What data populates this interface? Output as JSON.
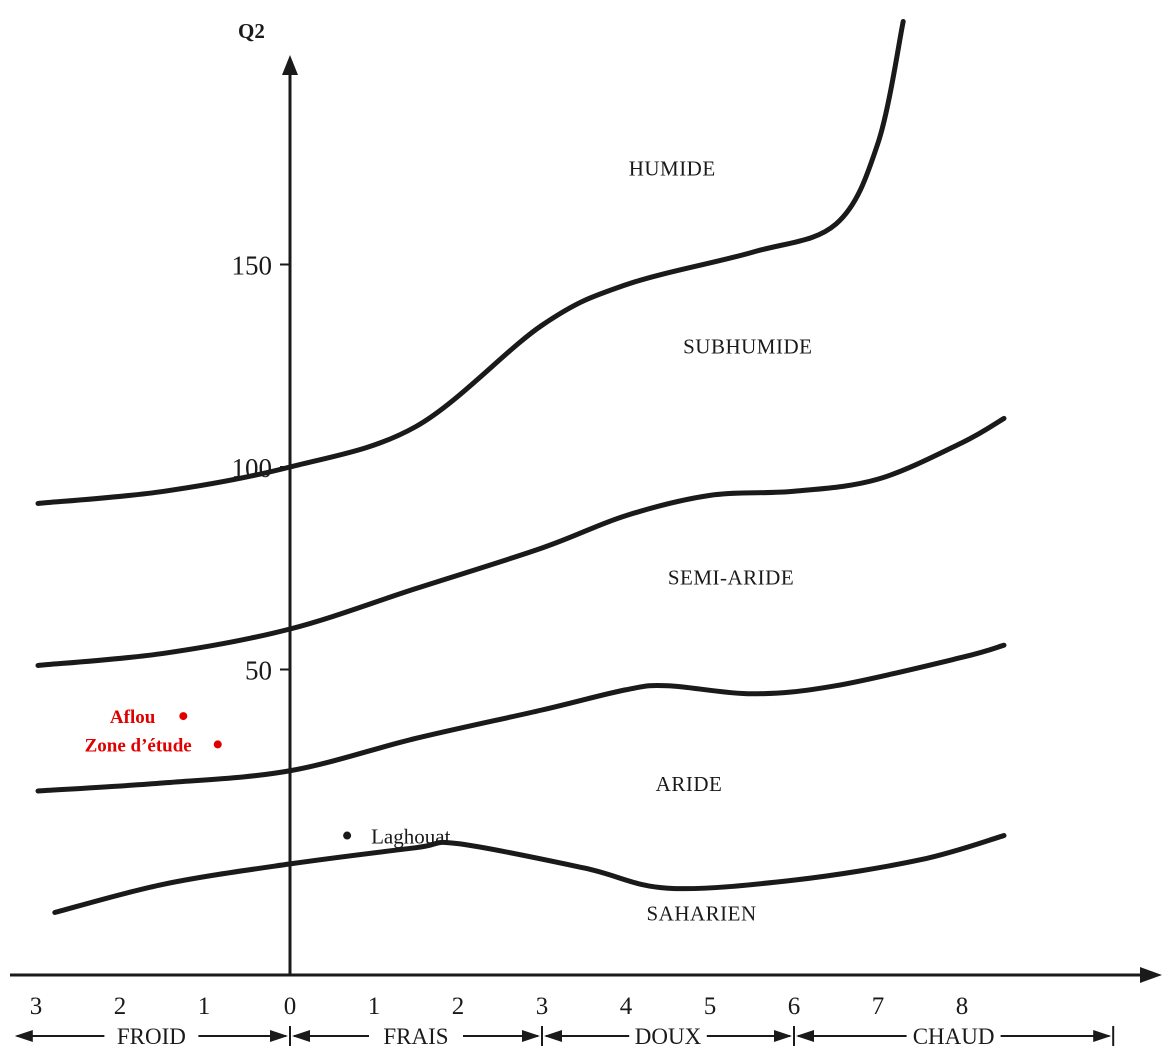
{
  "chart_data": {
    "type": "line",
    "title": "",
    "ylabel": "Q2",
    "xlabel": "",
    "x": {
      "tick_labels": [
        "3",
        "2",
        "1",
        "0",
        "1",
        "2",
        "3",
        "4",
        "5",
        "6",
        "7",
        "8"
      ]
    },
    "y": {
      "tick_labels": [
        "50",
        "100",
        "150"
      ]
    },
    "bands": [
      {
        "label": "FROID"
      },
      {
        "label": "FRAIS"
      },
      {
        "label": "DOUX"
      },
      {
        "label": "CHAUD"
      }
    ],
    "zones": [
      "HUMIDE",
      "SUBHUMIDE",
      "SEMI-ARIDE",
      "ARIDE",
      "SAHARIEN"
    ],
    "boundaries": [
      {
        "between": "HUMIDE / SUBHUMIDE",
        "points": [
          [
            -3.0,
            91
          ],
          [
            -1.5,
            94
          ],
          [
            0,
            100
          ],
          [
            1.5,
            110
          ],
          [
            3.0,
            135
          ],
          [
            4.0,
            145
          ],
          [
            5.5,
            153
          ],
          [
            6.5,
            160
          ],
          [
            7.0,
            180
          ],
          [
            7.3,
            210
          ]
        ]
      },
      {
        "between": "SUBHUMIDE / SEMI-ARIDE",
        "points": [
          [
            -3.0,
            51
          ],
          [
            -1.5,
            54
          ],
          [
            0,
            60
          ],
          [
            1.5,
            70
          ],
          [
            3.0,
            80
          ],
          [
            4.0,
            88
          ],
          [
            5.0,
            93
          ],
          [
            6.0,
            94
          ],
          [
            7.0,
            97
          ],
          [
            8.0,
            106
          ],
          [
            8.5,
            112
          ]
        ]
      },
      {
        "between": "SEMI-ARIDE / ARIDE",
        "points": [
          [
            -3.0,
            20
          ],
          [
            -1.5,
            22
          ],
          [
            0,
            25
          ],
          [
            1.5,
            33
          ],
          [
            3.0,
            40
          ],
          [
            4.0,
            45
          ],
          [
            4.5,
            46
          ],
          [
            5.5,
            44
          ],
          [
            6.5,
            46
          ],
          [
            8.0,
            53
          ],
          [
            8.5,
            56
          ]
        ]
      },
      {
        "between": "ARIDE / SAHARIEN",
        "points": [
          [
            -2.8,
            -10
          ],
          [
            -1.5,
            -3
          ],
          [
            0,
            2
          ],
          [
            1.5,
            6
          ],
          [
            2.0,
            7
          ],
          [
            3.5,
            1
          ],
          [
            4.5,
            -4
          ],
          [
            6.0,
            -2
          ],
          [
            7.5,
            3
          ],
          [
            8.5,
            9
          ]
        ]
      }
    ],
    "stations": [
      {
        "name": "Laghouat",
        "color": "#1a1a1a"
      },
      {
        "name": "Aflou",
        "color": "#e00000"
      },
      {
        "name": "Zone d’étude",
        "color": "#e00000"
      }
    ],
    "grid": false,
    "legend": "none"
  }
}
